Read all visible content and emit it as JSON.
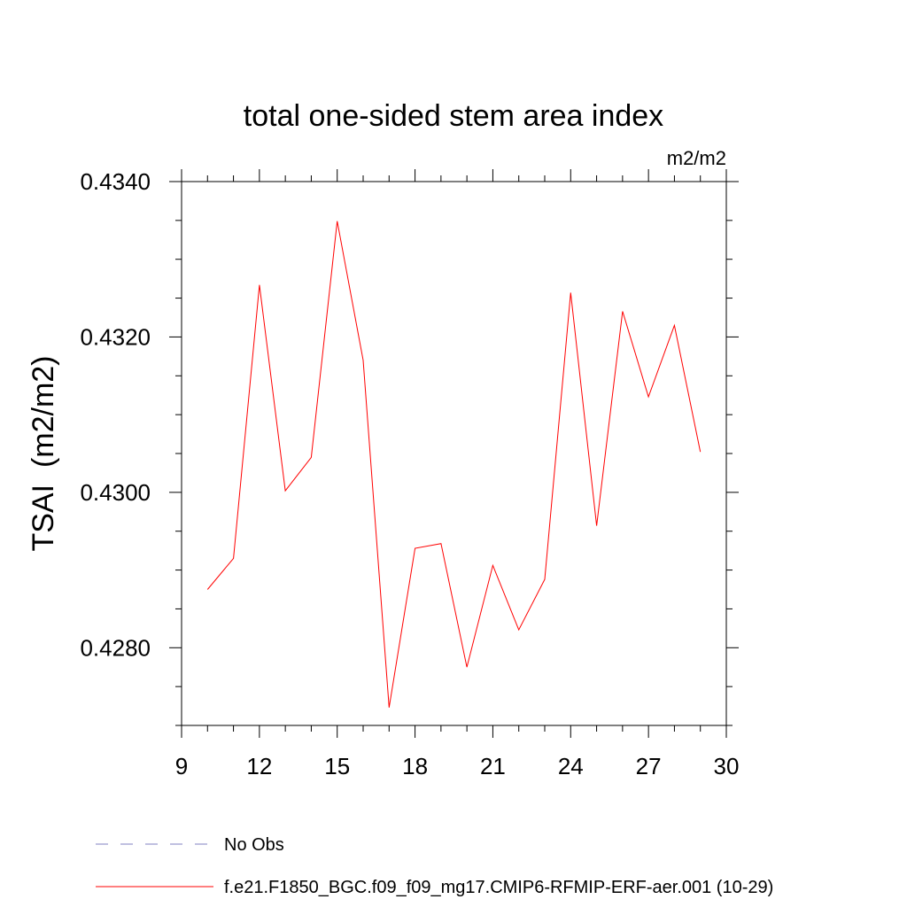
{
  "chart_data": {
    "type": "line",
    "title": "total one-sided stem area index",
    "units_label": "m2/m2",
    "ylabel": "TSAI  (m2/m2)",
    "xlabel": "",
    "xlim": [
      9,
      30
    ],
    "ylim": [
      0.427,
      0.434
    ],
    "x_ticks": [
      9,
      12,
      15,
      18,
      21,
      24,
      27,
      30
    ],
    "y_ticks": [
      0.428,
      0.43,
      0.432,
      0.434
    ],
    "y_tick_labels": [
      "0.4280",
      "0.4300",
      "0.4320",
      "0.4340"
    ],
    "x_minor_step": 1,
    "y_minor_step": 0.0005,
    "grid": false,
    "x": [
      10,
      11,
      12,
      13,
      14,
      15,
      16,
      17,
      18,
      19,
      20,
      21,
      22,
      23,
      24,
      25,
      26,
      27,
      28,
      29
    ],
    "series": [
      {
        "name": "f.e21.F1850_BGC.f09_f09_mg17.CMIP6-RFMIP-ERF-aer.001 (10-29)",
        "color": "#ff0000",
        "dash": "solid",
        "values": [
          0.42875,
          0.42915,
          0.43267,
          0.43002,
          0.43045,
          0.43349,
          0.4317,
          0.42723,
          0.42928,
          0.42934,
          0.42775,
          0.42906,
          0.42823,
          0.42888,
          0.43257,
          0.42957,
          0.43233,
          0.43123,
          0.43215,
          0.43052
        ]
      }
    ],
    "legend": {
      "placement": "bottom",
      "entries": [
        {
          "label": "No Obs",
          "color": "#8080c0",
          "dash": "dashed"
        },
        {
          "label": "f.e21.F1850_BGC.f09_f09_mg17.CMIP6-RFMIP-ERF-aer.001 (10-29)",
          "color": "#ff0000",
          "dash": "solid"
        }
      ]
    }
  }
}
